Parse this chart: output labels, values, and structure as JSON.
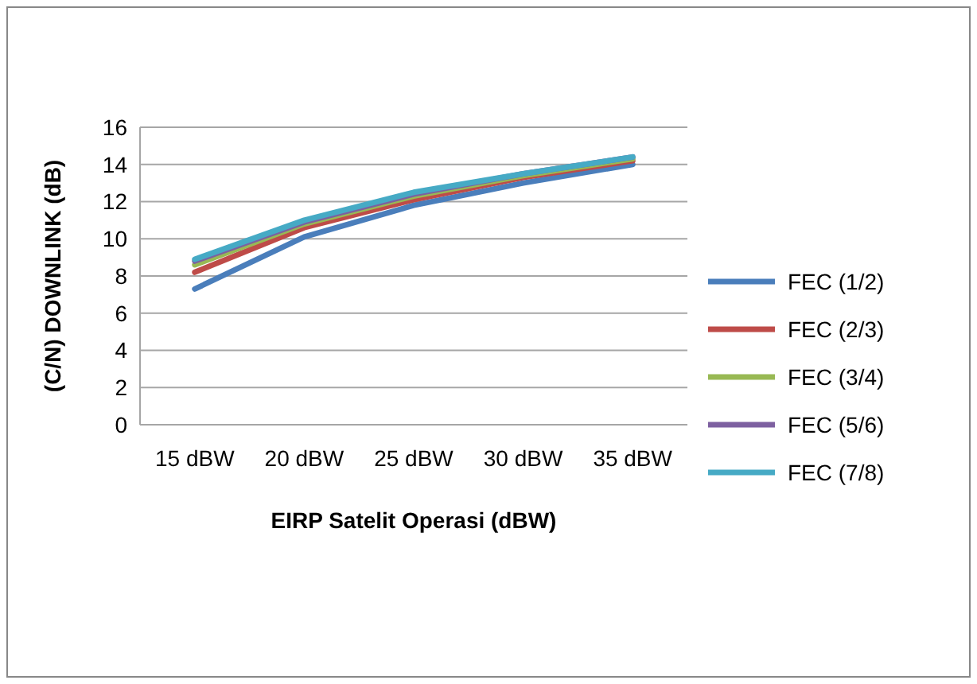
{
  "chart_data": {
    "type": "line",
    "xlabel": "EIRP Satelit Operasi (dBW)",
    "ylabel": "(C/N) DOWNLINK (dB)",
    "categories": [
      "15 dBW",
      "20 dBW",
      "25 dBW",
      "30 dBW",
      "35 dBW"
    ],
    "ylim": [
      0,
      16
    ],
    "yticks": [
      0,
      2,
      4,
      6,
      8,
      10,
      12,
      14,
      16
    ],
    "grid": "y",
    "legend": "right",
    "marker": "none",
    "line_style": "solid",
    "series": [
      {
        "name": "FEC (1/2)",
        "color": "#4a7ebb",
        "values": [
          7.3,
          10.1,
          11.8,
          13.0,
          14.0
        ]
      },
      {
        "name": "FEC (2/3)",
        "color": "#be4b48",
        "values": [
          8.2,
          10.6,
          12.1,
          13.3,
          14.2
        ]
      },
      {
        "name": "FEC (3/4)",
        "color": "#98b954",
        "values": [
          8.6,
          10.8,
          12.3,
          13.4,
          14.3
        ]
      },
      {
        "name": "FEC (5/6)",
        "color": "#7d60a0",
        "values": [
          8.8,
          10.9,
          12.4,
          13.5,
          14.4
        ]
      },
      {
        "name": "FEC (7/8)",
        "color": "#46aac5",
        "values": [
          8.9,
          11.0,
          12.5,
          13.5,
          14.4
        ]
      }
    ]
  }
}
